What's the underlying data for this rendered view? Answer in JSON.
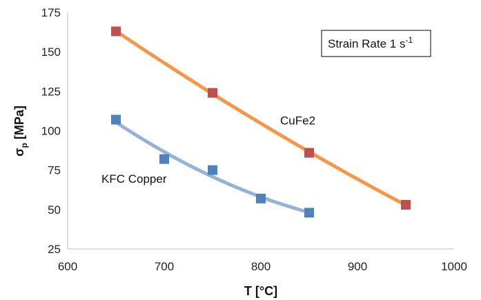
{
  "chart_data": {
    "type": "scatter",
    "xlabel": "T [°C]",
    "ylabel_main": "σ",
    "ylabel_sub": "p",
    "ylabel_unit": " [MPa]",
    "xlim": [
      600,
      1000
    ],
    "ylim": [
      25,
      175
    ],
    "xticks": [
      600,
      700,
      800,
      900,
      1000
    ],
    "yticks": [
      25,
      50,
      75,
      100,
      125,
      150,
      175
    ],
    "grid": false,
    "annotation": {
      "text_main": "Strain Rate 1 s",
      "text_sup": "-1"
    },
    "series": [
      {
        "name": "CuFe2",
        "marker_color": "#c0504d",
        "line_color": "#f79646",
        "marker": "square",
        "trendline": "fitted curve",
        "points": [
          {
            "x": 650,
            "y": 163
          },
          {
            "x": 750,
            "y": 124
          },
          {
            "x": 850,
            "y": 86
          },
          {
            "x": 950,
            "y": 53
          }
        ],
        "label_anchor": {
          "x": 820,
          "y": 104
        }
      },
      {
        "name": "KFC Copper",
        "marker_color": "#4f81bd",
        "line_color": "#95b3d7",
        "marker": "square",
        "trendline": "fitted curve",
        "points": [
          {
            "x": 650,
            "y": 107
          },
          {
            "x": 700,
            "y": 82
          },
          {
            "x": 750,
            "y": 75
          },
          {
            "x": 800,
            "y": 57
          },
          {
            "x": 850,
            "y": 48
          }
        ],
        "label_anchor": {
          "x": 635,
          "y": 67
        }
      }
    ]
  }
}
